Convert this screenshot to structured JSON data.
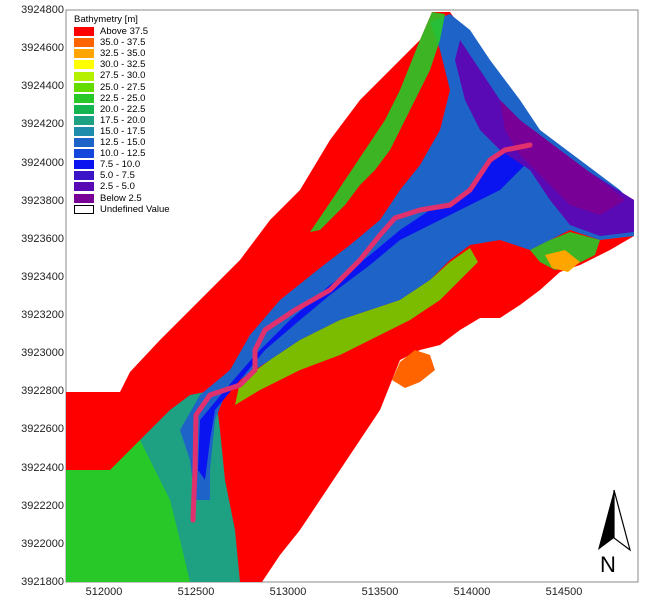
{
  "legend": {
    "title": "Bathymetry [m]",
    "items": [
      {
        "label": "Above 37.5",
        "color": "#ff0000"
      },
      {
        "label": "35.0 - 37.5",
        "color": "#ff6400"
      },
      {
        "label": "32.5 - 35.0",
        "color": "#ffa500"
      },
      {
        "label": "30.0 - 32.5",
        "color": "#ffff00"
      },
      {
        "label": "27.5 - 30.0",
        "color": "#b4f000"
      },
      {
        "label": "25.0 - 27.5",
        "color": "#64dc00"
      },
      {
        "label": "22.5 - 25.0",
        "color": "#28c828"
      },
      {
        "label": "20.0 - 22.5",
        "color": "#14b450"
      },
      {
        "label": "17.5 - 20.0",
        "color": "#1ea082"
      },
      {
        "label": "15.0 - 17.5",
        "color": "#1e8caa"
      },
      {
        "label": "12.5 - 15.0",
        "color": "#1e64c8"
      },
      {
        "label": "10.0 - 12.5",
        "color": "#1446dc"
      },
      {
        "label": "7.5 - 10.0",
        "color": "#0a14f0"
      },
      {
        "label": "5.0 - 7.5",
        "color": "#3c14c8"
      },
      {
        "label": "2.5 - 5.0",
        "color": "#5a0ab4"
      },
      {
        "label": "Below 2.5",
        "color": "#780096"
      },
      {
        "label": "Undefined Value",
        "color": "#ffffff"
      }
    ]
  },
  "axes": {
    "y_ticks": [
      "3924800",
      "3924600",
      "3924400",
      "3924200",
      "3924000",
      "3923800",
      "3923600",
      "3923400",
      "3923200",
      "3923000",
      "3922800",
      "3922600",
      "3922400",
      "3922200",
      "3922000",
      "3921800"
    ],
    "x_ticks": [
      "512000",
      "512500",
      "513000",
      "513500",
      "514000",
      "514500"
    ]
  },
  "north_arrow": {
    "letter": "N",
    "icon": "north-arrow-icon"
  },
  "channel_color": "#e0306e"
}
